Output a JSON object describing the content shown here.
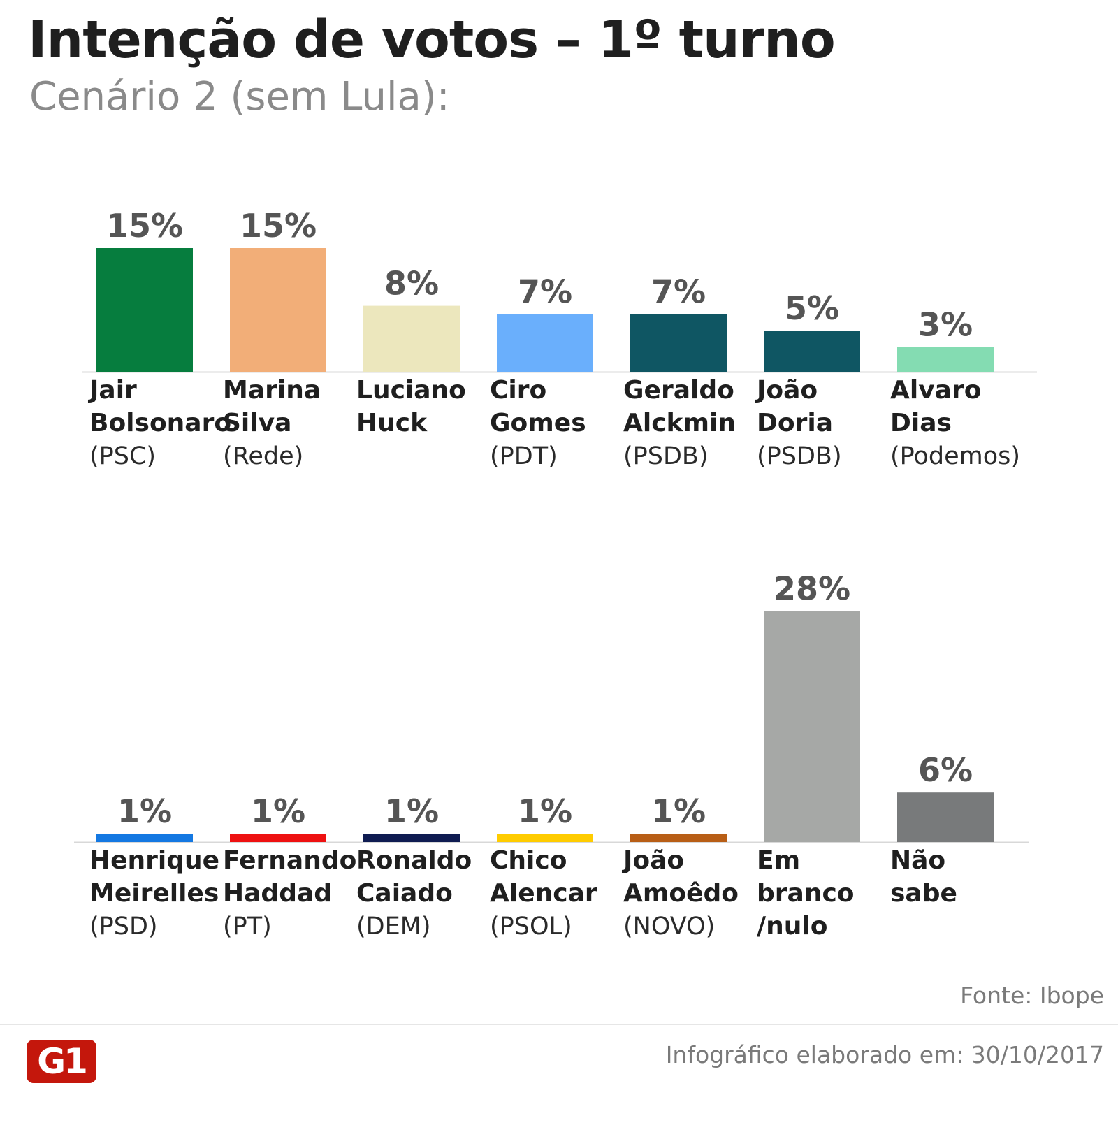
{
  "title": "Intenção de votos – 1º turno",
  "subtitle": "Cenário 2 (sem Lula):",
  "source": "Fonte: Ibope",
  "credit": "Infográfico elaborado em: 30/10/2017",
  "logo_text": "G1",
  "chart_data": [
    {
      "type": "bar",
      "unit": "%",
      "ylim": [
        0,
        28
      ],
      "grid": false,
      "categories": [
        "Jair Bolsonaro",
        "Marina Silva",
        "Luciano Huck",
        "Ciro Gomes",
        "Geraldo Alckmin",
        "João Doria",
        "Alvaro Dias"
      ],
      "values": [
        15,
        15,
        8,
        7,
        7,
        5,
        3
      ],
      "value_labels": [
        "15%",
        "15%",
        "8%",
        "7%",
        "7%",
        "5%",
        "3%"
      ],
      "name_lines": [
        [
          "Jair",
          "Bolsonaro"
        ],
        [
          "Marina",
          "Silva"
        ],
        [
          "Luciano",
          "Huck"
        ],
        [
          "Ciro",
          "Gomes"
        ],
        [
          "Geraldo",
          "Alckmin"
        ],
        [
          "João",
          "Doria"
        ],
        [
          "Alvaro",
          "Dias"
        ]
      ],
      "parties": [
        "(PSC)",
        "(Rede)",
        "",
        "(PDT)",
        "(PSDB)",
        "(PSDB)",
        "(Podemos)"
      ],
      "colors": [
        "#067d3e",
        "#f2ae78",
        "#ece7bd",
        "#6aaffc",
        "#0f5663",
        "#0f5663",
        "#84dcb2"
      ]
    },
    {
      "type": "bar",
      "unit": "%",
      "ylim": [
        0,
        28
      ],
      "grid": false,
      "categories": [
        "Henrique Meirelles",
        "Fernando Haddad",
        "Ronaldo Caiado",
        "Chico Alencar",
        "João Amoêdo",
        "Em branco /nulo",
        "Não sabe"
      ],
      "values": [
        1,
        1,
        1,
        1,
        1,
        28,
        6
      ],
      "value_labels": [
        "1%",
        "1%",
        "1%",
        "1%",
        "1%",
        "28%",
        "6%"
      ],
      "name_lines": [
        [
          "Henrique",
          "Meirelles"
        ],
        [
          "Fernando",
          "Haddad"
        ],
        [
          "Ronaldo",
          "Caiado"
        ],
        [
          "Chico",
          "Alencar"
        ],
        [
          "João",
          "Amoêdo"
        ],
        [
          "Em",
          "branco",
          "/nulo"
        ],
        [
          "Não",
          "sabe"
        ]
      ],
      "parties": [
        "(PSD)",
        "(PT)",
        "(DEM)",
        "(PSOL)",
        "(NOVO)",
        "",
        ""
      ],
      "colors": [
        "#1478e2",
        "#ee1111",
        "#0f1c52",
        "#ffcc00",
        "#b85e16",
        "#a6a8a6",
        "#787a7b"
      ]
    }
  ]
}
